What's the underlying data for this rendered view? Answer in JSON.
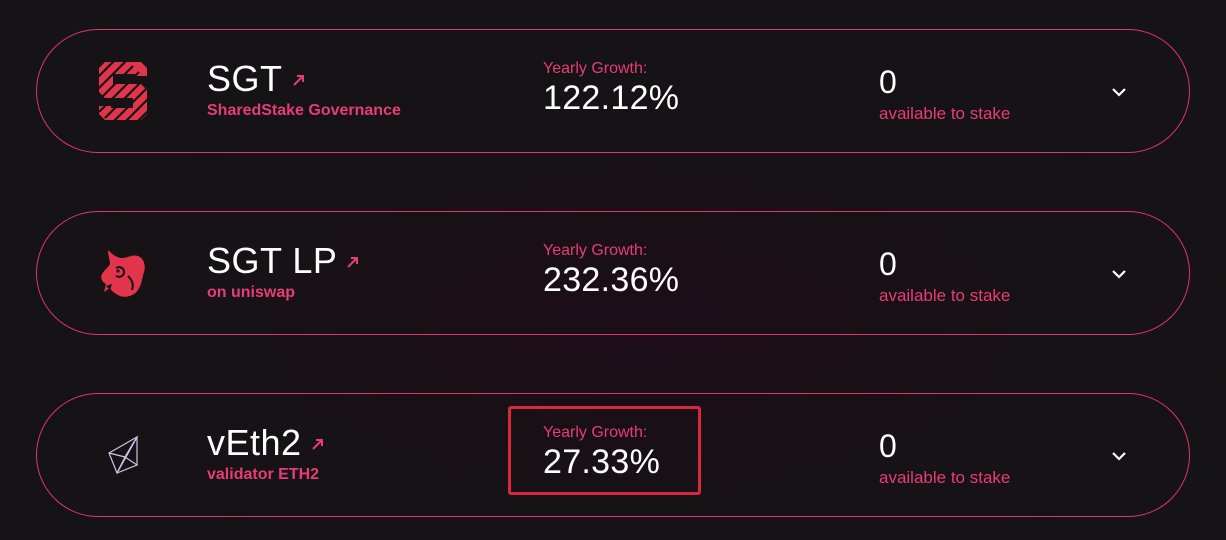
{
  "pools": [
    {
      "name": "SGT",
      "subtitle": "SharedStake Governance",
      "icon": "sharedstake-logo-icon",
      "growth_label": "Yearly Growth:",
      "growth_value": "122.12%",
      "available_value": "0",
      "available_label": "available to stake"
    },
    {
      "name": "SGT LP",
      "subtitle": "on uniswap",
      "icon": "uniswap-unicorn-icon",
      "growth_label": "Yearly Growth:",
      "growth_value": "232.36%",
      "available_value": "0",
      "available_label": "available to stake"
    },
    {
      "name": "vEth2",
      "subtitle": "validator ETH2",
      "icon": "ethereum-diamond-icon",
      "growth_label": "Yearly Growth:",
      "growth_value": "27.33%",
      "available_value": "0",
      "available_label": "available to stake"
    }
  ],
  "colors": {
    "accent": "#e73c78",
    "card_border": "#e0336a",
    "highlight": "#d9283e",
    "background": "#151315"
  }
}
